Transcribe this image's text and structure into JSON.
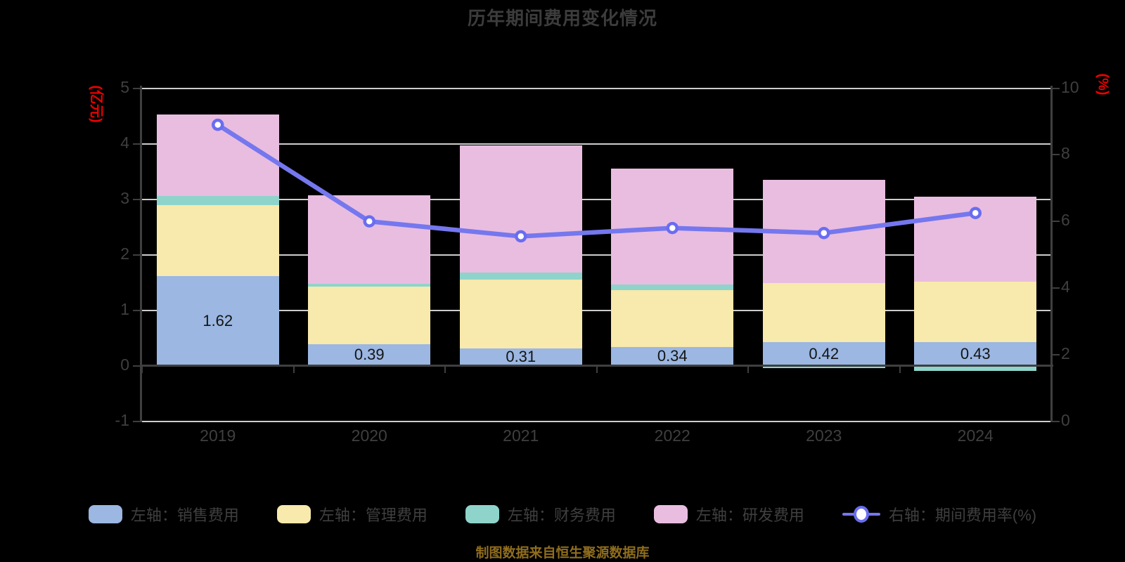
{
  "title": "历年期间费用变化情况",
  "source_note": "制图数据来自恒生聚源数据库",
  "colors": {
    "background": "#000000",
    "title": "#3c3c3c",
    "axis_line": "#3f3f3f",
    "tick_label": "#3f3f3f",
    "grid_line": "#cdcdcd",
    "axis_name": "#ee0000",
    "value_label": "#141414",
    "legend_label": "#3f3f3f",
    "source_note": "#8f6d1d"
  },
  "chart_data": {
    "type": "stacked-bar+line",
    "categories": [
      "2019",
      "2020",
      "2021",
      "2022",
      "2023",
      "2024"
    ],
    "left_axis": {
      "name": "(亿元)",
      "min": -1,
      "max": 5,
      "ticks": [
        5,
        4,
        3,
        2,
        1,
        0,
        -1
      ]
    },
    "right_axis": {
      "name": "(%)",
      "min": 0,
      "max": 10,
      "ticks": [
        10,
        8,
        6,
        4,
        2,
        0
      ]
    },
    "grid": true,
    "legend_position": "bottom",
    "bar_series": [
      {
        "name": "左轴：销售费用",
        "color": "#9bb7e2",
        "values": [
          1.62,
          0.39,
          0.31,
          0.34,
          0.42,
          0.43
        ],
        "show_labels": true
      },
      {
        "name": "左轴：管理费用",
        "color": "#f8e9ac",
        "values": [
          1.27,
          1.04,
          1.24,
          1.02,
          1.07,
          1.08
        ]
      },
      {
        "name": "左轴：财务费用",
        "color": "#8fd4cb",
        "values": [
          0.17,
          0.05,
          0.13,
          0.1,
          -0.05,
          -0.1
        ]
      },
      {
        "name": "左轴：研发费用",
        "color": "#e9bde0",
        "values": [
          1.47,
          1.59,
          2.29,
          2.09,
          1.86,
          1.54
        ]
      }
    ],
    "bar_totals": [
      4.53,
      3.07,
      3.97,
      3.55,
      3.35,
      3.05
    ],
    "value_labels": [
      "1.62",
      "0.39",
      "0.31",
      "0.34",
      "0.42",
      "0.43"
    ],
    "line_series": {
      "name": "右轴：期间费用率(%)",
      "axis": "right",
      "color": "#7577ee",
      "marker_fill": "#ffffff",
      "marker_stroke": "#6a6df0",
      "values": [
        8.9,
        6.0,
        5.55,
        5.8,
        5.65,
        6.25
      ]
    }
  }
}
